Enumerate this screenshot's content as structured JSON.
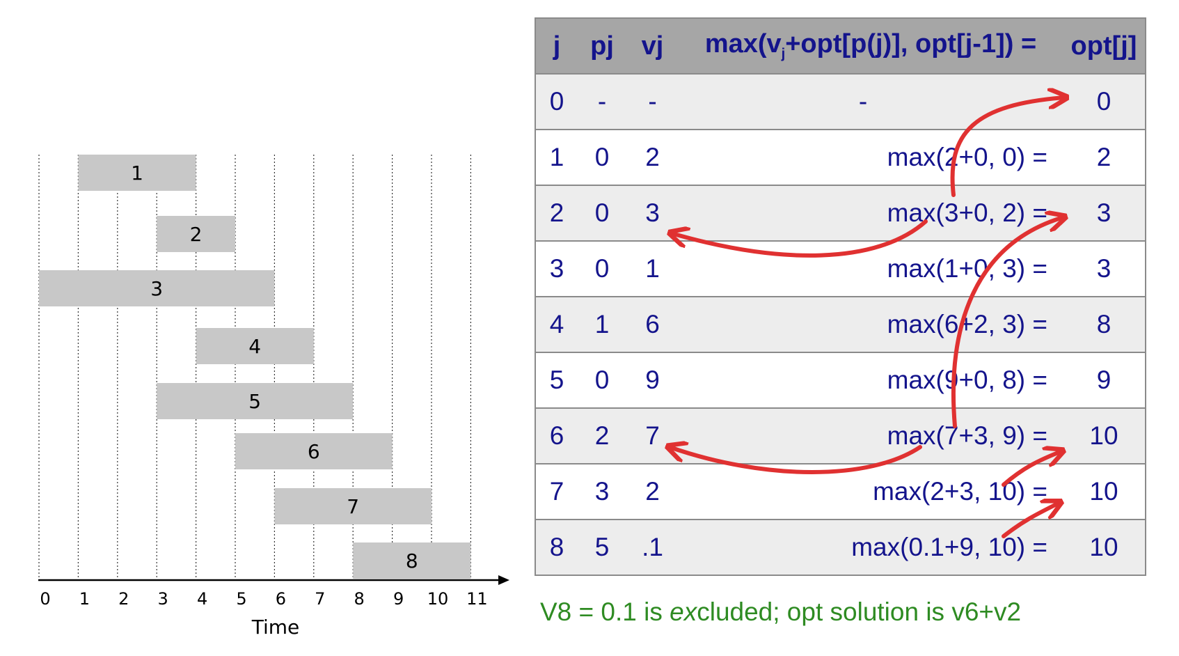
{
  "timeline": {
    "axis_label": "Time",
    "ticks": [
      "0",
      "1",
      "2",
      "3",
      "4",
      "5",
      "6",
      "7",
      "8",
      "9",
      "10",
      "11"
    ],
    "tick_values": [
      0,
      1,
      2,
      3,
      4,
      5,
      6,
      7,
      8,
      9,
      10,
      11
    ],
    "jobs": [
      {
        "label": "1",
        "start": 1,
        "finish": 4
      },
      {
        "label": "2",
        "start": 3,
        "finish": 5
      },
      {
        "label": "3",
        "start": 0,
        "finish": 6
      },
      {
        "label": "4",
        "start": 4,
        "finish": 7
      },
      {
        "label": "5",
        "start": 3,
        "finish": 8
      },
      {
        "label": "6",
        "start": 5,
        "finish": 9
      },
      {
        "label": "7",
        "start": 6,
        "finish": 10
      },
      {
        "label": "8",
        "start": 8,
        "finish": 11
      }
    ],
    "bar_color": "#c8c8c8"
  },
  "table": {
    "headers": [
      "j",
      "pj",
      "vj",
      "max(vj+opt[p(j)], opt[j-1]) =",
      "opt[j]"
    ],
    "rows": [
      {
        "j": "0",
        "pj": "-",
        "vj": "-",
        "expr": "-",
        "opt": "0"
      },
      {
        "j": "1",
        "pj": "0",
        "vj": "2",
        "expr": "max(2+0,   0) =",
        "opt": "2"
      },
      {
        "j": "2",
        "pj": "0",
        "vj": "3",
        "expr": "max(3+0,   2) =",
        "opt": "3"
      },
      {
        "j": "3",
        "pj": "0",
        "vj": "1",
        "expr": "max(1+0,   3) =",
        "opt": "3"
      },
      {
        "j": "4",
        "pj": "1",
        "vj": "6",
        "expr": "max(6+2,   3) =",
        "opt": "8"
      },
      {
        "j": "5",
        "pj": "0",
        "vj": "9",
        "expr": "max(9+0,   8) =",
        "opt": "9"
      },
      {
        "j": "6",
        "pj": "2",
        "vj": "7",
        "expr": "max(7+3,   9) =",
        "opt": "10"
      },
      {
        "j": "7",
        "pj": "3",
        "vj": "2",
        "expr": "max(2+3, 10) =",
        "opt": "10"
      },
      {
        "j": "8",
        "pj": "5",
        "vj": ".1",
        "expr": "max(0.1+9, 10) =",
        "opt": "10"
      }
    ]
  },
  "note": "V8 = 0.1 is excluded; opt solution is v6+v2",
  "colors": {
    "text": "#14148c",
    "header_bg": "#a6a6a6",
    "row_alt": "#ededed",
    "arrow": "#e03131",
    "note": "#2e8b22"
  }
}
